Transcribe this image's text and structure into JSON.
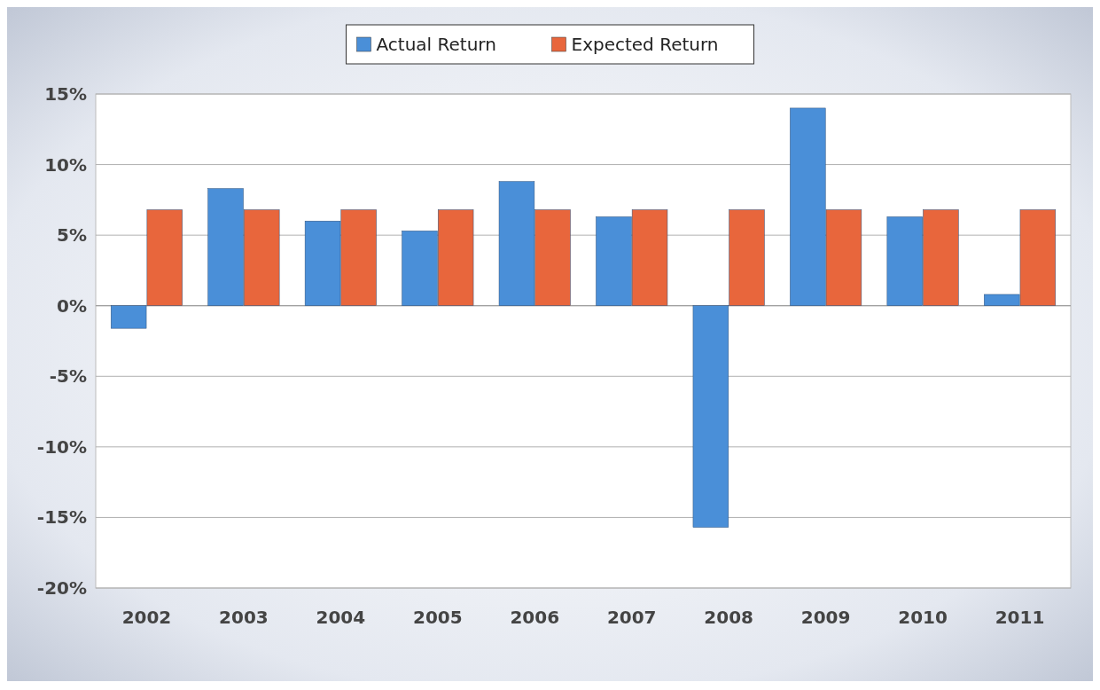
{
  "chart_data": {
    "type": "bar",
    "categories": [
      "2002",
      "2003",
      "2004",
      "2005",
      "2006",
      "2007",
      "2008",
      "2009",
      "2010",
      "2011"
    ],
    "series": [
      {
        "name": "Actual Return",
        "color": "#4a8fd8",
        "values": [
          -1.6,
          8.3,
          6.0,
          5.3,
          8.8,
          6.3,
          -15.7,
          14.0,
          6.3,
          0.8
        ]
      },
      {
        "name": "Expected Return",
        "color": "#e8663c",
        "values": [
          6.8,
          6.8,
          6.8,
          6.8,
          6.8,
          6.8,
          6.8,
          6.8,
          6.8,
          6.8
        ]
      }
    ],
    "ylim": [
      -20,
      15
    ],
    "yticks": [
      {
        "value": -20,
        "label": "-20%"
      },
      {
        "value": -15,
        "label": "-15%"
      },
      {
        "value": -10,
        "label": "-10%"
      },
      {
        "value": -5,
        "label": "-5%"
      },
      {
        "value": 0,
        "label": "0%"
      },
      {
        "value": 5,
        "label": "5%"
      },
      {
        "value": 10,
        "label": "10%"
      },
      {
        "value": 15,
        "label": "15%"
      }
    ],
    "grid": "y",
    "legend": "top"
  }
}
